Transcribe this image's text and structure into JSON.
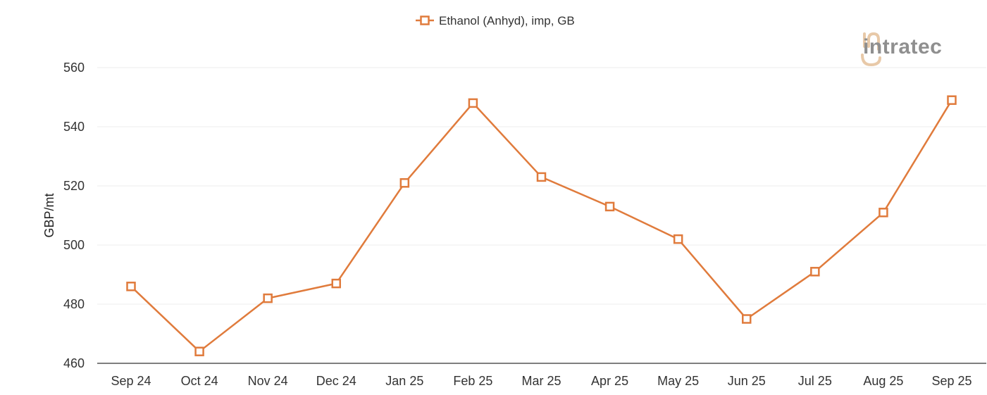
{
  "chart_data": {
    "type": "line",
    "categories": [
      "Sep 24",
      "Oct 24",
      "Nov 24",
      "Dec 24",
      "Jan 25",
      "Feb 25",
      "Mar 25",
      "Apr 25",
      "May 25",
      "Jun 25",
      "Jul 25",
      "Aug 25",
      "Sep 25"
    ],
    "series": [
      {
        "name": "Ethanol (Anhyd), imp, GB",
        "values": [
          486,
          464,
          482,
          487,
          521,
          548,
          523,
          513,
          502,
          475,
          491,
          511,
          549
        ],
        "color": "#e07b3c"
      }
    ],
    "ylabel": "GBP/mt",
    "xlabel": "",
    "ylim": [
      460,
      560
    ],
    "yticks": [
      460,
      480,
      500,
      520,
      540,
      560
    ],
    "grid": true,
    "legend_position": "top-center"
  },
  "branding": {
    "logo_text": "intratec",
    "logo_accent_color": "#e8c9a8",
    "logo_text_color": "#8f8f8f"
  },
  "colors": {
    "gridline": "#eeeeee",
    "axis": "#555555"
  }
}
